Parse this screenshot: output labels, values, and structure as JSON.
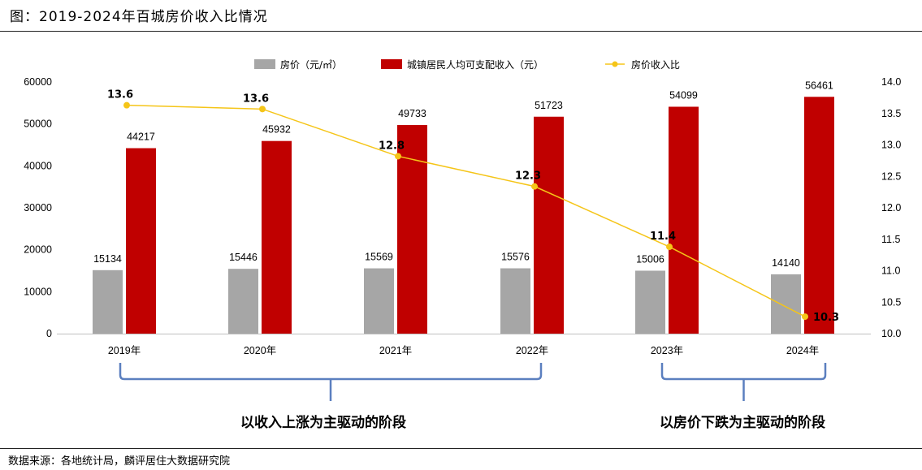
{
  "title": "图：2019-2024年百城房价收入比情况",
  "source": "数据来源：各地统计局，麟评居住大数据研究院",
  "colors": {
    "price_bar": "#a6a6a6",
    "income_bar": "#c00000",
    "ratio_line": "#f5c518",
    "bracket": "#5b7fbf"
  },
  "chart_data": {
    "type": "bar",
    "categories": [
      "2019年",
      "2020年",
      "2021年",
      "2022年",
      "2023年",
      "2024年"
    ],
    "series": [
      {
        "name": "房价（元/㎡）",
        "type": "bar",
        "axis": "left",
        "values": [
          15134,
          15446,
          15569,
          15576,
          15006,
          14140
        ]
      },
      {
        "name": "城镇居民人均可支配收入（元）",
        "type": "bar",
        "axis": "left",
        "values": [
          44217,
          45932,
          49733,
          51723,
          54099,
          56461
        ]
      },
      {
        "name": "房价收入比",
        "type": "line",
        "axis": "right",
        "values": [
          13.6,
          13.6,
          12.8,
          12.3,
          11.4,
          10.3
        ],
        "plot_values": [
          13.63,
          13.57,
          12.82,
          12.34,
          11.38,
          10.27
        ]
      }
    ],
    "y_left": {
      "min": 0,
      "max": 60000,
      "ticks": [
        "0",
        "10000",
        "20000",
        "30000",
        "40000",
        "50000",
        "60000"
      ]
    },
    "y_right": {
      "min": 10.0,
      "max": 14.0,
      "ticks": [
        "10.0",
        "10.5",
        "11.0",
        "11.5",
        "12.0",
        "12.5",
        "13.0",
        "13.5",
        "14.0"
      ]
    },
    "legend_position": "top",
    "grid": false,
    "annotations": [
      {
        "text": "以收入上涨为主驱动的阶段",
        "from_category": 0,
        "to_category": 3
      },
      {
        "text": "以房价下跌为主驱动的阶段",
        "from_category": 4,
        "to_category": 5
      }
    ]
  }
}
